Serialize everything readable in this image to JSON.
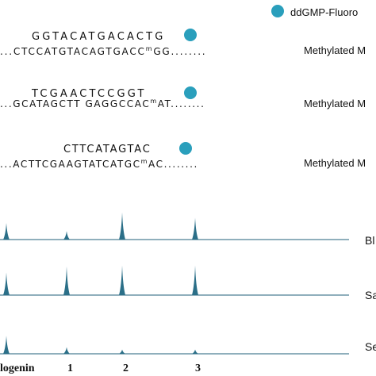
{
  "legend": {
    "label": "ddGMP-Fluoro",
    "color": "#2a9fbc"
  },
  "probes": [
    {
      "primer": "GGTACATGACACTG",
      "template_left": "...CTCCATGTACAGTGACC",
      "template_mark": "m",
      "template_right": "GG........",
      "label": "Methylated M"
    },
    {
      "primer": "TCGAACTCCGGT",
      "template_left": "...GCATAGCTT GAGGCCAC",
      "template_mark": "m",
      "template_right": "AT........",
      "label": "Methylated M"
    },
    {
      "primer": "CTTCATAGTAC",
      "template_left": "...ACTTCGAAGTATCATGC",
      "template_mark": "m",
      "template_right": "AC........",
      "label": "Methylated M"
    }
  ],
  "traces": [
    {
      "label": "Bl",
      "peaks": [
        {
          "x_label": "logenin",
          "height": 0.55
        },
        {
          "x_label": "1",
          "height": 0.28
        },
        {
          "x_label": "2",
          "height": 0.9
        },
        {
          "x_label": "3",
          "height": 0.72
        }
      ]
    },
    {
      "label": "Sa",
      "peaks": [
        {
          "x_label": "logenin",
          "height": 0.75
        },
        {
          "x_label": "1",
          "height": 0.95
        },
        {
          "x_label": "2",
          "height": 0.98
        },
        {
          "x_label": "3",
          "height": 0.98
        }
      ]
    },
    {
      "label": "Se",
      "peaks": [
        {
          "x_label": "logenin",
          "height": 0.6
        },
        {
          "x_label": "1",
          "height": 0.22
        },
        {
          "x_label": "2",
          "height": 0.14
        },
        {
          "x_label": "3",
          "height": 0.14
        }
      ]
    }
  ],
  "x_axis_labels": [
    "logenin",
    "1",
    "2",
    "3"
  ],
  "trace_color": "#1f5f78",
  "trace_fill": "#2b6f88"
}
